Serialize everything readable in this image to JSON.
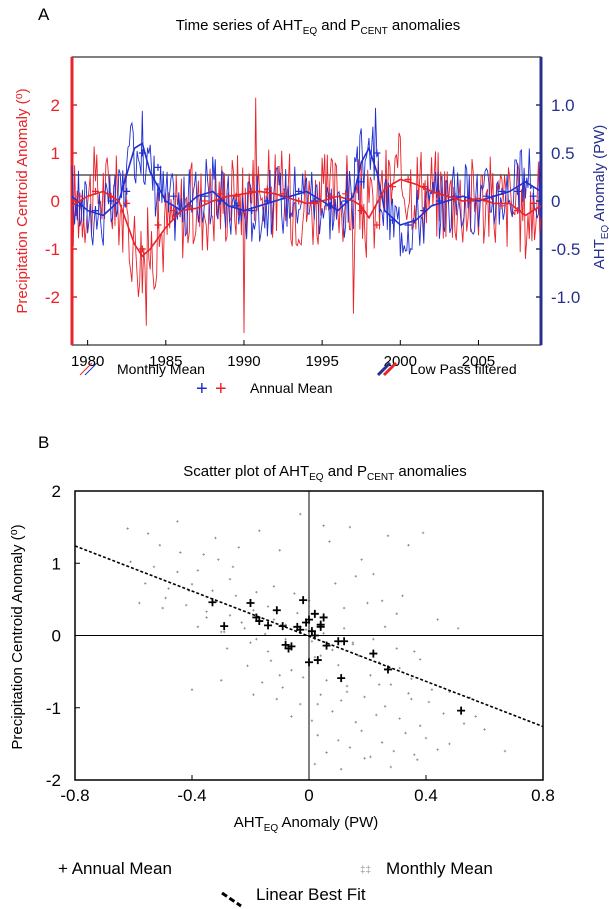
{
  "panel_a": {
    "letter": "A",
    "title_pre": "Time series of AHT",
    "title_sub1": "EQ",
    "title_mid": " and P",
    "title_sub2": "CENT",
    "title_post": " anomalies",
    "ylabel_left": "Precipitation Centroid Anomaly (⁰)",
    "ylabel_right_pre": "AHT",
    "ylabel_right_sub": "EQ",
    "ylabel_right_post": " Anomaly (PW)",
    "legend": {
      "monthly": "Monthly Mean",
      "lowpass": "Low Pass filtered",
      "annual": "Annual Mean"
    }
  },
  "panel_b": {
    "letter": "B",
    "title_pre": "Scatter plot of AHT",
    "title_sub1": "EQ",
    "title_mid": " and P",
    "title_sub2": "CENT",
    "title_post": " anomalies",
    "ylabel": "Precipitation Centroid Anomaly (⁰)",
    "xlabel_pre": "AHT",
    "xlabel_sub": "EQ",
    "xlabel_post": " Anomaly (PW)",
    "legend": {
      "annual": "+ Annual Mean",
      "monthly": "Monthly Mean",
      "fit": "Linear Best Fit"
    }
  },
  "colors": {
    "precip": "#e8232a",
    "aht": "#1f2fd1",
    "aht_axis": "#27308f",
    "scatter": "#888888"
  },
  "chart_data": [
    {
      "type": "line",
      "title": "Time series of AHT_EQ and P_CENT anomalies",
      "xlabel": "",
      "ylabel": "Precipitation Centroid Anomaly (⁰)",
      "ylabel_right": "AHT_EQ Anomaly (PW)",
      "xlim": [
        1979,
        2009
      ],
      "ylim_left": [
        -3,
        3
      ],
      "ylim_right": [
        -1.5,
        1.5
      ],
      "x_ticks": [
        1980,
        1985,
        1990,
        1995,
        2000,
        2005
      ],
      "y_ticks_left": [
        -2,
        -1,
        0,
        1,
        2
      ],
      "y_ticks_right": [
        -1.0,
        -0.5,
        0,
        0.5,
        1.0
      ],
      "y_ticks_right_labels": [
        "-1.0",
        "-0.5",
        "0",
        "0.5",
        "1.0"
      ],
      "annual_x": [
        1979.5,
        1980.5,
        1981.5,
        1982.5,
        1983.5,
        1984.5,
        1985.5,
        1986.5,
        1987.5,
        1988.5,
        1989.5,
        1990.5,
        1991.5,
        1992.5,
        1993.5,
        1994.5,
        1995.5,
        1996.5,
        1997.5,
        1998.5,
        1999.5,
        2000.5,
        2001.5,
        2002.5,
        2003.5,
        2004.5,
        2005.5,
        2006.5,
        2007.5,
        2008.5
      ],
      "series": [
        {
          "name": "P_CENT",
          "axis": "left",
          "lowpass_x": [
            1979.0,
            1980.0,
            1981.0,
            1982.0,
            1983.0,
            1983.5,
            1984.0,
            1985.0,
            1986.0,
            1987.0,
            1988.0,
            1989.0,
            1990.0,
            1991.0,
            1992.0,
            1993.0,
            1994.0,
            1995.0,
            1996.0,
            1997.0,
            1997.5,
            1998.0,
            1999.0,
            2000.0,
            2001.0,
            2002.0,
            2003.0,
            2004.0,
            2005.0,
            2006.0,
            2007.0,
            2008.0,
            2009.0
          ],
          "lowpass_y": [
            -0.1,
            0.1,
            0.2,
            0.0,
            -0.9,
            -1.15,
            -1.0,
            -0.55,
            -0.2,
            -0.15,
            0.0,
            0.1,
            0.15,
            0.2,
            0.15,
            0.05,
            -0.05,
            0.0,
            0.1,
            0.0,
            -0.1,
            -0.35,
            0.25,
            0.45,
            0.35,
            0.2,
            0.1,
            0.0,
            0.05,
            -0.05,
            -0.05,
            -0.3,
            -0.1
          ],
          "annual_y": [
            0.1,
            0.2,
            0.1,
            -0.05,
            -1.0,
            -0.5,
            -0.2,
            -0.1,
            0.0,
            0.15,
            0.1,
            0.2,
            0.25,
            0.15,
            0.0,
            -0.05,
            0.1,
            0.15,
            -0.2,
            -0.5,
            0.3,
            0.45,
            0.3,
            0.15,
            0.05,
            0.0,
            0.0,
            -0.1,
            -0.2,
            -0.05
          ]
        },
        {
          "name": "AHT_EQ",
          "axis": "right",
          "lowpass_x": [
            1979.0,
            1980.0,
            1981.0,
            1982.0,
            1983.0,
            1983.5,
            1984.0,
            1985.0,
            1986.0,
            1987.0,
            1988.0,
            1989.0,
            1990.0,
            1991.0,
            1992.0,
            1993.0,
            1994.0,
            1995.0,
            1996.0,
            1997.0,
            1997.5,
            1998.0,
            1998.5,
            1999.0,
            2000.0,
            2001.0,
            2002.0,
            2003.0,
            2004.0,
            2005.0,
            2006.0,
            2007.0,
            2008.0,
            2009.0
          ],
          "lowpass_y": [
            0.05,
            -0.1,
            -0.15,
            0.0,
            0.55,
            0.6,
            0.3,
            0.0,
            -0.1,
            0.05,
            0.1,
            -0.05,
            -0.1,
            -0.05,
            0.0,
            0.05,
            0.1,
            0.0,
            -0.1,
            0.05,
            0.4,
            0.55,
            0.3,
            -0.1,
            -0.25,
            -0.2,
            -0.05,
            0.0,
            0.05,
            0.0,
            0.05,
            0.1,
            0.2,
            0.1
          ],
          "annual_y": [
            -0.05,
            -0.1,
            0.0,
            0.1,
            0.5,
            0.35,
            0.05,
            -0.05,
            0.05,
            0.0,
            -0.05,
            -0.1,
            0.0,
            0.05,
            0.1,
            0.0,
            -0.05,
            0.0,
            0.2,
            0.5,
            -0.2,
            -0.25,
            -0.1,
            0.0,
            0.05,
            0.0,
            0.05,
            0.1,
            0.1,
            0.05
          ]
        }
      ]
    },
    {
      "type": "scatter",
      "title": "Scatter plot of AHT_EQ and P_CENT anomalies",
      "xlabel": "AHT_EQ Anomaly (PW)",
      "ylabel": "Precipitation Centroid Anomaly (⁰)",
      "xlim": [
        -0.8,
        0.8
      ],
      "ylim": [
        -2,
        2
      ],
      "x_ticks": [
        -0.8,
        -0.4,
        0,
        0.4,
        0.8
      ],
      "x_tick_labels": [
        "-0.8",
        "-0.4",
        "0",
        "0.4",
        "0.8"
      ],
      "y_ticks": [
        -2,
        -1,
        0,
        1,
        2
      ],
      "series": [
        {
          "name": "Annual Mean",
          "x": [
            -0.33,
            -0.29,
            -0.2,
            -0.18,
            -0.17,
            -0.14,
            -0.11,
            -0.09,
            -0.08,
            -0.07,
            -0.06,
            -0.04,
            -0.03,
            -0.02,
            -0.01,
            0.0,
            0.0,
            0.01,
            0.02,
            0.02,
            0.03,
            0.04,
            0.04,
            0.05,
            0.06,
            0.1,
            0.11,
            0.12,
            0.22,
            0.27,
            0.52
          ],
          "y": [
            0.46,
            0.13,
            0.45,
            0.25,
            0.2,
            0.14,
            0.35,
            0.13,
            -0.13,
            -0.18,
            -0.15,
            0.12,
            0.08,
            0.49,
            0.18,
            0.22,
            -0.37,
            0.06,
            0.0,
            0.3,
            -0.34,
            0.15,
            0.12,
            0.25,
            -0.14,
            -0.08,
            -0.59,
            -0.08,
            -0.25,
            -0.47,
            -1.04
          ]
        },
        {
          "name": "Monthly Mean",
          "x": [
            -0.62,
            -0.55,
            -0.51,
            -0.44,
            -0.61,
            -0.53,
            -0.45,
            -0.38,
            -0.31,
            -0.56,
            -0.48,
            -0.4,
            -0.33,
            -0.25,
            -0.18,
            -0.5,
            -0.42,
            -0.35,
            -0.27,
            -0.19,
            -0.12,
            -0.04,
            -0.38,
            -0.3,
            -0.22,
            -0.15,
            -0.08,
            -0.01,
            0.05,
            0.12,
            -0.28,
            -0.2,
            -0.14,
            -0.07,
            0.01,
            0.08,
            0.15,
            0.22,
            0.3,
            -0.21,
            -0.13,
            -0.06,
            0.02,
            0.1,
            0.17,
            0.24,
            0.31,
            0.38,
            -0.16,
            -0.09,
            -0.02,
            0.06,
            0.13,
            0.21,
            0.28,
            0.35,
            0.42,
            -0.11,
            -0.03,
            0.04,
            0.11,
            0.19,
            0.26,
            0.34,
            0.41,
            0.48,
            0.55,
            -0.06,
            0.01,
            0.08,
            0.16,
            0.23,
            0.31,
            0.38,
            0.46,
            0.53,
            0.6,
            0.03,
            0.1,
            0.18,
            0.25,
            0.33,
            0.4,
            0.48,
            0.06,
            0.14,
            0.21,
            0.29,
            0.37,
            0.44,
            0.02,
            0.11,
            0.19,
            0.28,
            0.36,
            0.67,
            -0.32,
            -0.24,
            -0.17,
            -0.1,
            0.07,
            0.14,
            0.27,
            0.34,
            -0.45,
            -0.36,
            -0.26,
            -0.03,
            0.05,
            0.18,
            0.22,
            0.39,
            -0.58,
            -0.49,
            -0.41,
            -0.27,
            -0.12,
            -0.05,
            0.09,
            0.16,
            0.25,
            0.32,
            -0.35,
            -0.23,
            -0.14,
            0.0,
            0.12,
            0.2,
            0.3,
            0.44,
            0.51,
            -0.29,
            -0.18,
            -0.08,
            0.04,
            0.15,
            0.26,
            0.36,
            -0.4,
            -0.3,
            -0.19,
            -0.1,
            0.03,
            0.13,
            0.24,
            0.35,
            0.57
          ],
          "y": [
            1.48,
            1.41,
            1.25,
            1.15,
            1.02,
            0.95,
            0.88,
            0.9,
            1.05,
            0.72,
            0.65,
            0.71,
            0.62,
            0.55,
            0.6,
            0.38,
            0.42,
            0.33,
            0.28,
            0.35,
            0.22,
            0.31,
            0.12,
            0.05,
            0.1,
            0.02,
            -0.05,
            0.08,
            0.03,
            0.1,
            -0.18,
            -0.1,
            -0.22,
            -0.15,
            -0.08,
            -0.2,
            -0.12,
            -0.05,
            -0.18,
            -0.42,
            -0.35,
            -0.48,
            -0.3,
            -0.41,
            -0.28,
            -0.37,
            -0.45,
            -0.33,
            -0.65,
            -0.72,
            -0.58,
            -0.62,
            -0.7,
            -0.55,
            -0.68,
            -0.6,
            -0.75,
            -0.88,
            -0.95,
            -0.82,
            -0.9,
            -0.85,
            -0.98,
            -0.8,
            -0.92,
            -0.78,
            -0.86,
            -1.12,
            -1.18,
            -1.05,
            -1.2,
            -1.1,
            -1.15,
            -1.25,
            -1.08,
            -1.22,
            -1.3,
            -1.38,
            -1.45,
            -1.32,
            -1.48,
            -1.35,
            -1.42,
            -1.5,
            -1.62,
            -1.55,
            -1.68,
            -1.6,
            -1.72,
            -1.58,
            -1.78,
            -1.85,
            -1.7,
            -1.82,
            -1.65,
            -1.6,
            1.35,
            1.22,
            1.45,
            1.18,
            1.3,
            1.5,
            1.38,
            1.25,
            1.58,
            1.12,
            0.95,
            1.68,
            1.52,
            1.05,
            0.85,
            1.42,
            0.45,
            0.52,
            0.62,
            0.78,
            0.68,
            0.58,
            0.72,
            0.82,
            0.48,
            0.55,
            0.25,
            0.18,
            0.4,
            0.48,
            0.38,
            0.45,
            0.3,
            0.22,
            0.1,
            0.05,
            -0.05,
            0.15,
            -0.28,
            -0.1,
            0.12,
            -0.22,
            -0.75,
            -0.62,
            -0.82,
            -0.55,
            -0.95,
            -0.78,
            -0.68,
            -0.88,
            -1.12
          ]
        }
      ],
      "fit": {
        "x": [
          -0.8,
          0.8
        ],
        "y": [
          1.24,
          -1.26
        ]
      }
    }
  ]
}
